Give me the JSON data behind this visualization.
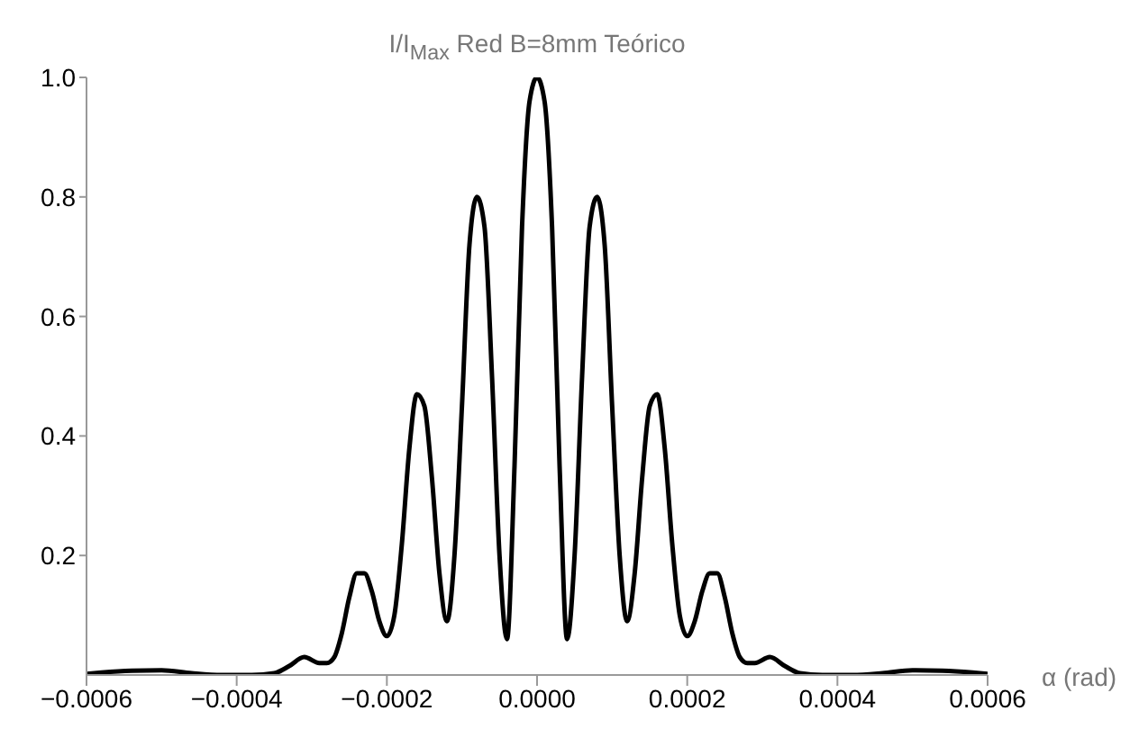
{
  "chart_data": {
    "type": "line",
    "title": "I/I$_{Max}$ Red B=8mm Teórico",
    "xlabel": "α (rad)",
    "x": [
      -0.0006,
      -0.00058,
      -0.00054,
      -0.0005,
      -0.00046,
      -0.00042,
      -0.00038,
      -0.00035,
      -0.00033,
      -0.00031,
      -0.00029,
      -0.00028,
      -0.00027,
      -0.00026,
      -0.00025,
      -0.00024,
      -0.00023,
      -0.00022,
      -0.00021,
      -0.0002,
      -0.00019,
      -0.00018,
      -0.00017,
      -0.00016,
      -0.00015,
      -0.00014,
      -0.00013,
      -0.00012,
      -0.00011,
      -0.0001,
      -9e-05,
      -8e-05,
      -7e-05,
      -6e-05,
      -5e-05,
      -4e-05,
      -3e-05,
      -2e-05,
      -1e-05,
      0,
      1e-05,
      2e-05,
      3e-05,
      4e-05,
      5e-05,
      6e-05,
      7e-05,
      8e-05,
      9e-05,
      0.0001,
      0.00011,
      0.00012,
      0.00013,
      0.00014,
      0.00015,
      0.00016,
      0.00017,
      0.00018,
      0.00019,
      0.0002,
      0.00021,
      0.00022,
      0.00023,
      0.00024,
      0.00025,
      0.00026,
      0.00027,
      0.00028,
      0.00029,
      0.00031,
      0.00033,
      0.00035,
      0.00038,
      0.00042,
      0.00046,
      0.0005,
      0.00054,
      0.00058,
      0.0006
    ],
    "series": [
      {
        "color": "#000000",
        "values": [
          0.002,
          0.004,
          0.007,
          0.008,
          0.003,
          0,
          0,
          0.003,
          0.015,
          0.03,
          0.02,
          0.02,
          0.03,
          0.07,
          0.13,
          0.17,
          0.17,
          0.14,
          0.09,
          0.065,
          0.1,
          0.22,
          0.38,
          0.47,
          0.45,
          0.33,
          0.17,
          0.09,
          0.2,
          0.45,
          0.72,
          0.8,
          0.75,
          0.5,
          0.2,
          0.06,
          0.35,
          0.75,
          0.96,
          1.0,
          0.96,
          0.75,
          0.35,
          0.06,
          0.2,
          0.5,
          0.75,
          0.8,
          0.72,
          0.45,
          0.2,
          0.09,
          0.17,
          0.33,
          0.45,
          0.47,
          0.38,
          0.22,
          0.1,
          0.065,
          0.09,
          0.14,
          0.17,
          0.17,
          0.13,
          0.07,
          0.03,
          0.02,
          0.02,
          0.03,
          0.015,
          0.003,
          0,
          0,
          0.003,
          0.008,
          0.007,
          0.004,
          0.002
        ]
      }
    ],
    "xlim": [
      -0.0006,
      0.0006
    ],
    "xticks": [
      {
        "value": -0.0006,
        "label": "−0.0006"
      },
      {
        "value": -0.0004,
        "label": "−0.0004"
      },
      {
        "value": -0.0002,
        "label": "−0.0002"
      },
      {
        "value": 0,
        "label": "0.0000"
      },
      {
        "value": 0.0002,
        "label": "0.0002"
      },
      {
        "value": 0.0004,
        "label": "0.0004"
      },
      {
        "value": 0.0006,
        "label": "0.0006"
      }
    ],
    "ylim": [
      0,
      1.0
    ],
    "yticks": [
      0.2,
      0.4,
      0.6,
      0.8,
      {
        "value": 1.0,
        "label": "1.0"
      }
    ],
    "grid": false,
    "legend": false,
    "marker": "none",
    "line_style": "solid"
  }
}
